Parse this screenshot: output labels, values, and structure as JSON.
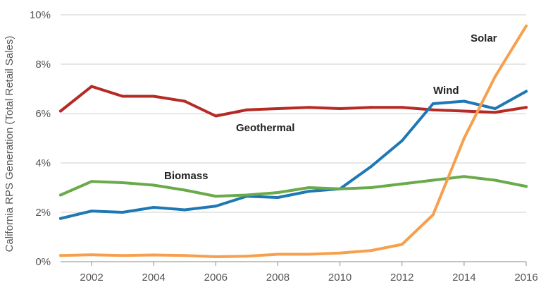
{
  "chart_data": {
    "type": "line",
    "ylabel": "California RPS Generation (Total Retail Sales)",
    "xlabel": "",
    "ylim": [
      0,
      10
    ],
    "xlim": [
      2001,
      2016
    ],
    "y_ticks": [
      0,
      2,
      4,
      6,
      8,
      10
    ],
    "y_tick_labels": [
      "0%",
      "2%",
      "4%",
      "6%",
      "8%",
      "10%"
    ],
    "x_ticks": [
      2002,
      2004,
      2006,
      2008,
      2010,
      2012,
      2014,
      2016
    ],
    "x_tick_labels": [
      "2002",
      "2004",
      "2006",
      "2008",
      "2010",
      "2012",
      "2014",
      "2016"
    ],
    "grid": "horizontal",
    "legend": "inline labels",
    "x": [
      2001,
      2002,
      2003,
      2004,
      2005,
      2006,
      2007,
      2008,
      2009,
      2010,
      2011,
      2012,
      2013,
      2014,
      2015,
      2016
    ],
    "series": [
      {
        "name": "Geothermal",
        "color": "#b52a24",
        "values": [
          6.1,
          7.1,
          6.7,
          6.7,
          6.5,
          5.9,
          6.15,
          6.2,
          6.25,
          6.2,
          6.25,
          6.25,
          6.15,
          6.1,
          6.05,
          6.25
        ]
      },
      {
        "name": "Wind",
        "color": "#1f78b4",
        "values": [
          1.75,
          2.05,
          2.0,
          2.2,
          2.1,
          2.25,
          2.65,
          2.6,
          2.85,
          2.95,
          3.85,
          4.9,
          6.4,
          6.5,
          6.2,
          6.9
        ]
      },
      {
        "name": "Biomass",
        "color": "#6aaa4a",
        "values": [
          2.7,
          3.25,
          3.2,
          3.1,
          2.9,
          2.65,
          2.7,
          2.8,
          3.0,
          2.95,
          3.0,
          3.15,
          3.3,
          3.45,
          3.3,
          3.05
        ]
      },
      {
        "name": "Solar",
        "color": "#f6a04d",
        "values": [
          0.25,
          0.28,
          0.25,
          0.27,
          0.25,
          0.2,
          0.22,
          0.3,
          0.3,
          0.35,
          0.45,
          0.7,
          1.9,
          5.0,
          7.5,
          9.55
        ]
      }
    ]
  }
}
